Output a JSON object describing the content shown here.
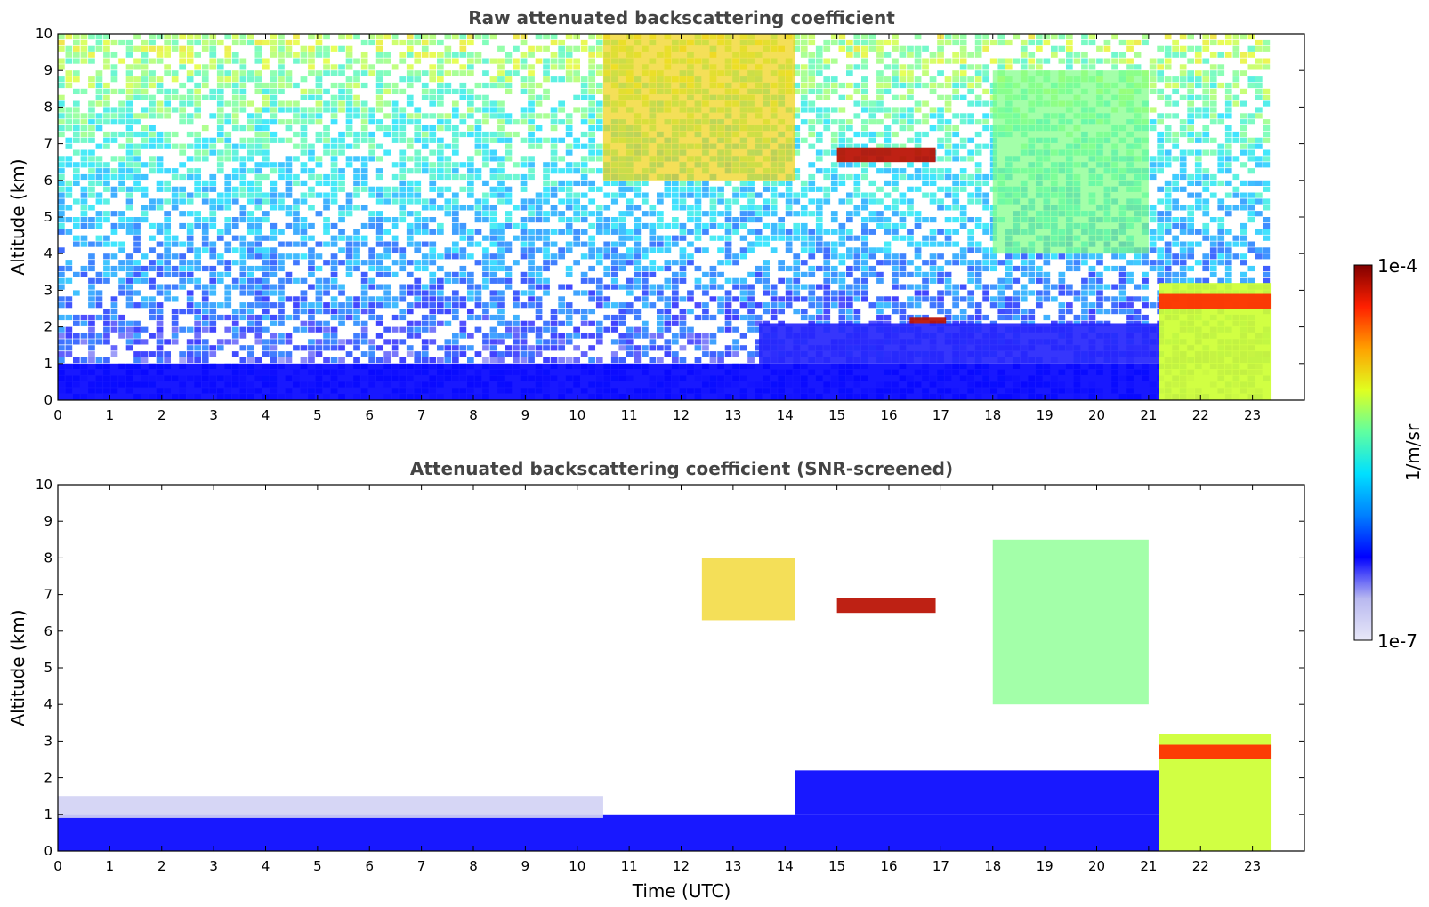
{
  "chart_data": [
    {
      "type": "heatmap",
      "title": "Raw attenuated backscattering coefficient",
      "xlabel": "",
      "ylabel": "Altitude (km)",
      "xlim": [
        0,
        24
      ],
      "ylim": [
        0,
        10
      ],
      "xticks": [
        "0",
        "1",
        "2",
        "3",
        "4",
        "5",
        "6",
        "7",
        "8",
        "9",
        "10",
        "11",
        "12",
        "13",
        "14",
        "15",
        "16",
        "17",
        "18",
        "19",
        "20",
        "21",
        "22",
        "23"
      ],
      "yticks": [
        "0",
        "1",
        "2",
        "3",
        "4",
        "5",
        "6",
        "7",
        "8",
        "9",
        "10"
      ],
      "data_end_hour": 23.35,
      "features": [
        {
          "name": "boundary layer",
          "x_range": [
            0,
            21.2
          ],
          "y_range": [
            0,
            1.0
          ],
          "level": 0.22
        },
        {
          "name": "residual aerosol layer",
          "x_range": [
            13.5,
            21.2
          ],
          "y_range": [
            1.0,
            2.1
          ],
          "level": 0.2
        },
        {
          "name": "noisy background (high sky)",
          "x_range": [
            0,
            23.35
          ],
          "y_range": [
            4,
            10
          ],
          "level": 0.5
        },
        {
          "name": "cirrus",
          "x_range": [
            10.5,
            14.2
          ],
          "y_range": [
            6.0,
            10.0
          ],
          "level": 0.72
        },
        {
          "name": "cloud band",
          "x_range": [
            15.0,
            16.9
          ],
          "y_range": [
            6.5,
            6.9
          ],
          "level": 0.95
        },
        {
          "name": "cloud top",
          "x_range": [
            16.4,
            17.1
          ],
          "y_range": [
            2.1,
            2.25
          ],
          "level": 0.95
        },
        {
          "name": "fall streaks",
          "x_range": [
            18.0,
            21.0
          ],
          "y_range": [
            4.0,
            9.0
          ],
          "level": 0.58
        },
        {
          "name": "low cloud / precipitation",
          "x_range": [
            21.2,
            23.35
          ],
          "y_range": [
            0,
            3.2
          ],
          "level": 0.65
        },
        {
          "name": "cloud base",
          "x_range": [
            21.2,
            23.35
          ],
          "y_range": [
            2.5,
            2.9
          ],
          "level": 0.88
        }
      ]
    },
    {
      "type": "heatmap",
      "title": "Attenuated backscattering coefficient (SNR-screened)",
      "xlabel": "Time (UTC)",
      "ylabel": "Altitude (km)",
      "xlim": [
        0,
        24
      ],
      "ylim": [
        0,
        10
      ],
      "xticks": [
        "0",
        "1",
        "2",
        "3",
        "4",
        "5",
        "6",
        "7",
        "8",
        "9",
        "10",
        "11",
        "12",
        "13",
        "14",
        "15",
        "16",
        "17",
        "18",
        "19",
        "20",
        "21",
        "22",
        "23"
      ],
      "yticks": [
        "0",
        "1",
        "2",
        "3",
        "4",
        "5",
        "6",
        "7",
        "8",
        "9",
        "10"
      ],
      "data_end_hour": 23.35,
      "features": [
        {
          "name": "boundary layer",
          "x_range": [
            0,
            21.2
          ],
          "y_range": [
            0,
            1.0
          ],
          "level": 0.22
        },
        {
          "name": "boundary layer top (faint)",
          "x_range": [
            0,
            10.5
          ],
          "y_range": [
            0.9,
            1.5
          ],
          "level": 0.05
        },
        {
          "name": "residual aerosol layer",
          "x_range": [
            14.2,
            21.2
          ],
          "y_range": [
            1.0,
            2.2
          ],
          "level": 0.22
        },
        {
          "name": "cirrus fragments",
          "x_range": [
            12.4,
            14.2
          ],
          "y_range": [
            6.3,
            8.0
          ],
          "level": 0.72
        },
        {
          "name": "cloud band",
          "x_range": [
            15.0,
            16.9
          ],
          "y_range": [
            6.5,
            6.9
          ],
          "level": 0.95
        },
        {
          "name": "fall streaks",
          "x_range": [
            18.0,
            21.0
          ],
          "y_range": [
            4.0,
            8.5
          ],
          "level": 0.58
        },
        {
          "name": "low cloud / precipitation",
          "x_range": [
            21.2,
            23.35
          ],
          "y_range": [
            0,
            3.2
          ],
          "level": 0.65
        },
        {
          "name": "cloud base",
          "x_range": [
            21.2,
            23.35
          ],
          "y_range": [
            2.5,
            2.9
          ],
          "level": 0.88
        }
      ]
    }
  ],
  "colorbar": {
    "label": "1/m/sr",
    "max_label": "1e-4",
    "min_label": "1e-7",
    "scale": "log",
    "colormap": "jet",
    "colors": [
      "#e8e8f8",
      "#b8b8f0",
      "#0000ff",
      "#0080ff",
      "#00e0ff",
      "#60ffa0",
      "#e0ff20",
      "#ffa000",
      "#ff2000",
      "#800000"
    ]
  },
  "background_color": "#ffffff",
  "missing_data_color": "#ffffff"
}
